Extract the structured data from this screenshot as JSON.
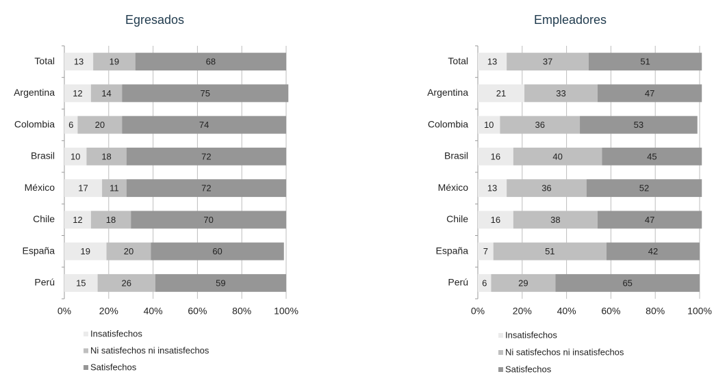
{
  "chart_data": [
    {
      "type": "bar",
      "orientation": "horizontal",
      "stacked": true,
      "title": "Egresados",
      "categories": [
        "Total",
        "Argentina",
        "Colombia",
        "Brasil",
        "México",
        "Chile",
        "España",
        "Perú"
      ],
      "series": [
        {
          "name": "Insatisfechos",
          "color": "#ebebeb",
          "values": [
            13,
            12,
            6,
            10,
            17,
            12,
            19,
            15
          ]
        },
        {
          "name": "Ni satisfechos ni insatisfechos",
          "color": "#bfbfbf",
          "values": [
            19,
            14,
            20,
            18,
            11,
            18,
            20,
            26
          ]
        },
        {
          "name": "Satisfechos",
          "color": "#969696",
          "values": [
            68,
            75,
            74,
            72,
            72,
            70,
            60,
            59
          ]
        }
      ],
      "xlim": [
        0,
        100
      ],
      "xticks": [
        {
          "value": 0,
          "label": "0%"
        },
        {
          "value": 20,
          "label": "20%"
        },
        {
          "value": 40,
          "label": "40%"
        },
        {
          "value": 60,
          "label": "60%"
        },
        {
          "value": 80,
          "label": "80%"
        },
        {
          "value": 100,
          "label": "100%"
        }
      ],
      "grid": true,
      "legend": "bottom-left"
    },
    {
      "type": "bar",
      "orientation": "horizontal",
      "stacked": true,
      "title": "Empleadores",
      "categories": [
        "Total",
        "Argentina",
        "Colombia",
        "Brasil",
        "México",
        "Chile",
        "España",
        "Perú"
      ],
      "series": [
        {
          "name": "Insatisfechos",
          "color": "#ebebeb",
          "values": [
            13,
            21,
            10,
            16,
            13,
            16,
            7,
            6
          ]
        },
        {
          "name": "Ni satisfechos ni insatisfechos",
          "color": "#bfbfbf",
          "values": [
            37,
            33,
            36,
            40,
            36,
            38,
            51,
            29
          ]
        },
        {
          "name": "Satisfechos",
          "color": "#969696",
          "values": [
            51,
            47,
            53,
            45,
            52,
            47,
            42,
            65
          ]
        }
      ],
      "xlim": [
        0,
        100
      ],
      "xticks": [
        {
          "value": 0,
          "label": "0%"
        },
        {
          "value": 20,
          "label": "20%"
        },
        {
          "value": 40,
          "label": "40%"
        },
        {
          "value": 60,
          "label": "60%"
        },
        {
          "value": 80,
          "label": "80%"
        },
        {
          "value": 100,
          "label": "100%"
        }
      ],
      "grid": true,
      "legend": "bottom-left"
    }
  ]
}
